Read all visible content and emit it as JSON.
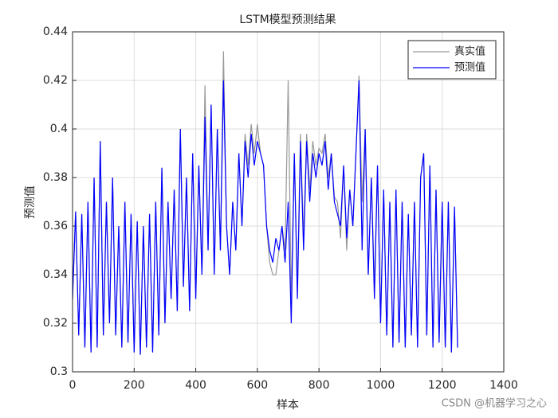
{
  "chart_data": {
    "type": "line",
    "title": "LSTM模型预测结果",
    "x_label": "样本",
    "y_label": "预测值",
    "x": [
      0,
      10,
      20,
      30,
      40,
      50,
      60,
      70,
      80,
      90,
      100,
      110,
      120,
      130,
      140,
      150,
      160,
      170,
      180,
      190,
      200,
      210,
      220,
      230,
      240,
      250,
      260,
      270,
      280,
      290,
      300,
      310,
      320,
      330,
      340,
      350,
      360,
      370,
      380,
      390,
      400,
      410,
      420,
      430,
      440,
      450,
      460,
      470,
      480,
      490,
      500,
      510,
      520,
      530,
      540,
      550,
      560,
      570,
      580,
      590,
      600,
      610,
      620,
      630,
      640,
      650,
      660,
      670,
      680,
      690,
      700,
      710,
      720,
      730,
      740,
      750,
      760,
      770,
      780,
      790,
      800,
      810,
      820,
      830,
      840,
      850,
      860,
      870,
      880,
      890,
      900,
      910,
      920,
      930,
      940,
      950,
      960,
      970,
      980,
      990,
      1000,
      1010,
      1020,
      1030,
      1040,
      1050,
      1060,
      1070,
      1080,
      1090,
      1100,
      1110,
      1120,
      1130,
      1140,
      1150,
      1160,
      1170,
      1180,
      1190,
      1200,
      1210,
      1220,
      1230,
      1240,
      1250
    ],
    "series": [
      {
        "name": "真实值",
        "color": "#999999",
        "values": [
          0.33,
          0.366,
          0.315,
          0.365,
          0.31,
          0.37,
          0.308,
          0.38,
          0.31,
          0.395,
          0.315,
          0.37,
          0.32,
          0.38,
          0.315,
          0.36,
          0.31,
          0.37,
          0.312,
          0.365,
          0.308,
          0.362,
          0.307,
          0.36,
          0.31,
          0.365,
          0.308,
          0.37,
          0.315,
          0.384,
          0.32,
          0.37,
          0.33,
          0.375,
          0.325,
          0.4,
          0.335,
          0.38,
          0.325,
          0.39,
          0.33,
          0.385,
          0.34,
          0.418,
          0.35,
          0.41,
          0.34,
          0.4,
          0.35,
          0.432,
          0.36,
          0.34,
          0.37,
          0.35,
          0.39,
          0.36,
          0.398,
          0.385,
          0.402,
          0.39,
          0.402,
          0.39,
          0.385,
          0.36,
          0.345,
          0.34,
          0.34,
          0.35,
          0.36,
          0.35,
          0.42,
          0.33,
          0.39,
          0.335,
          0.398,
          0.355,
          0.398,
          0.375,
          0.395,
          0.385,
          0.392,
          0.39,
          0.398,
          0.38,
          0.39,
          0.372,
          0.37,
          0.355,
          0.385,
          0.35,
          0.375,
          0.36,
          0.39,
          0.422,
          0.37,
          0.4,
          0.34,
          0.38,
          0.335,
          0.385,
          0.32,
          0.375,
          0.315,
          0.37,
          0.31,
          0.375,
          0.312,
          0.37,
          0.31,
          0.365,
          0.315,
          0.37,
          0.31,
          0.38,
          0.39,
          0.315,
          0.385,
          0.31,
          0.375,
          0.312,
          0.37,
          0.31,
          0.37,
          0.308,
          0.368,
          0.31
        ]
      },
      {
        "name": "预测值",
        "color": "#0000ff",
        "values": [
          0.33,
          0.366,
          0.315,
          0.365,
          0.31,
          0.37,
          0.308,
          0.38,
          0.31,
          0.395,
          0.315,
          0.37,
          0.32,
          0.38,
          0.315,
          0.36,
          0.31,
          0.37,
          0.312,
          0.365,
          0.308,
          0.362,
          0.307,
          0.36,
          0.31,
          0.365,
          0.308,
          0.37,
          0.315,
          0.384,
          0.32,
          0.37,
          0.33,
          0.375,
          0.325,
          0.4,
          0.335,
          0.38,
          0.325,
          0.39,
          0.33,
          0.385,
          0.34,
          0.405,
          0.35,
          0.41,
          0.34,
          0.4,
          0.35,
          0.42,
          0.36,
          0.34,
          0.37,
          0.35,
          0.39,
          0.36,
          0.395,
          0.38,
          0.398,
          0.385,
          0.395,
          0.39,
          0.385,
          0.36,
          0.35,
          0.345,
          0.355,
          0.35,
          0.36,
          0.345,
          0.37,
          0.32,
          0.39,
          0.33,
          0.395,
          0.35,
          0.395,
          0.37,
          0.39,
          0.38,
          0.39,
          0.385,
          0.395,
          0.375,
          0.39,
          0.37,
          0.365,
          0.36,
          0.385,
          0.355,
          0.375,
          0.36,
          0.39,
          0.42,
          0.35,
          0.4,
          0.34,
          0.38,
          0.33,
          0.385,
          0.32,
          0.375,
          0.315,
          0.37,
          0.31,
          0.375,
          0.312,
          0.37,
          0.31,
          0.365,
          0.315,
          0.37,
          0.31,
          0.38,
          0.39,
          0.315,
          0.385,
          0.31,
          0.375,
          0.312,
          0.37,
          0.31,
          0.37,
          0.308,
          0.368,
          0.31
        ]
      }
    ],
    "xlim": [
      0,
      1400
    ],
    "xticks": [
      0,
      200,
      400,
      600,
      800,
      1000,
      1200,
      1400
    ],
    "ylim": [
      0.3,
      0.44
    ],
    "yticks": [
      0.3,
      0.32,
      0.34,
      0.36,
      0.38,
      0.4,
      0.42,
      0.44
    ],
    "grid": true,
    "legend": "northeast",
    "watermark": "CSDN @机器学习之心"
  }
}
